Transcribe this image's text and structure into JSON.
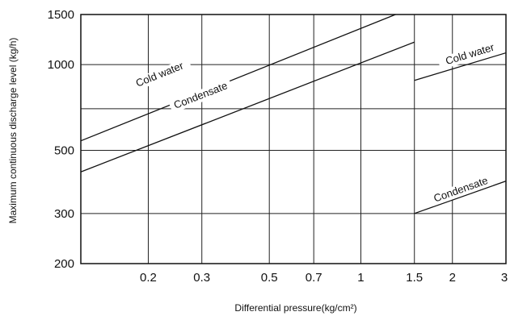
{
  "chart_data": {
    "type": "line",
    "xlabel": "Differential pressure(kg/cm²)",
    "ylabel": "Maximum continuous discharge level (kg/h)",
    "x_scale": "log",
    "y_scale": "log",
    "xlim": [
      0.12,
      3
    ],
    "ylim": [
      200,
      1500
    ],
    "x_ticks": [
      0.2,
      0.3,
      0.5,
      0.7,
      1,
      1.5,
      2,
      3
    ],
    "x_tick_labels": [
      "0.2",
      "0.3",
      "0.5",
      "0.7",
      "1",
      "1.5",
      "2",
      "3"
    ],
    "y_ticks": [
      200,
      300,
      500,
      1000,
      1500
    ],
    "y_tick_labels": [
      "200",
      "300",
      "500",
      "1000",
      "1500"
    ],
    "grid": true,
    "series": [
      {
        "name": "Cold water",
        "x": [
          0.12,
          1.3
        ],
        "y": [
          540,
          1500
        ]
      },
      {
        "name": "Condensate",
        "x": [
          0.12,
          1.5
        ],
        "y": [
          420,
          1200
        ]
      },
      {
        "name": "Cold water",
        "x": [
          1.5,
          3.0
        ],
        "y": [
          880,
          1100
        ]
      },
      {
        "name": "Condensate",
        "x": [
          1.5,
          3.0
        ],
        "y": [
          300,
          390
        ]
      }
    ],
    "annotations": [
      {
        "text": "Cold water",
        "x": 0.22,
        "y": 900,
        "series": 0
      },
      {
        "text": "Condensate",
        "x": 0.3,
        "y": 760,
        "series": 1
      },
      {
        "text": "Cold water",
        "x": 2.3,
        "y": 1060,
        "series": 2
      },
      {
        "text": "Condensate",
        "x": 2.15,
        "y": 355,
        "series": 3
      }
    ]
  }
}
